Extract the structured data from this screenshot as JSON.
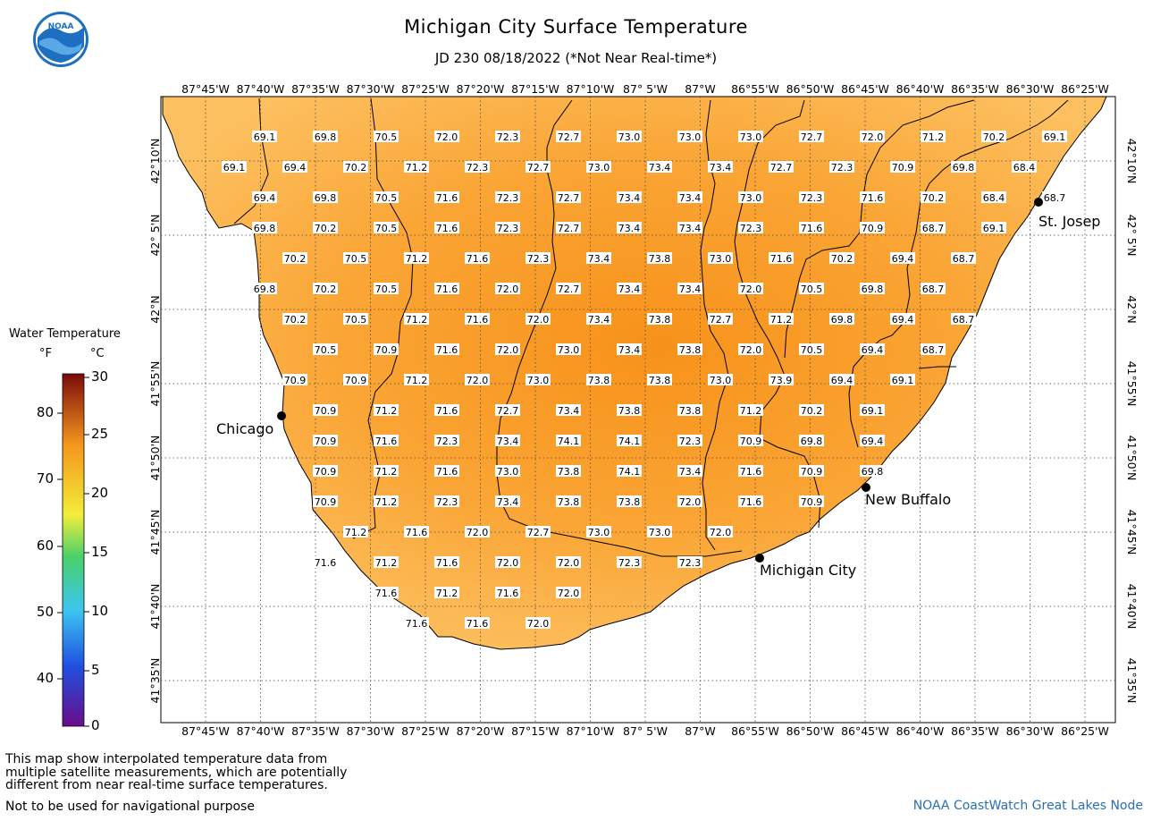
{
  "header": {
    "title": "Michigan City Surface Temperature",
    "subtitle": "JD 230 08/18/2022 (*Not Near Real-time*)",
    "logo_text": "NOAA"
  },
  "legend": {
    "title": "Water Temperature",
    "unit_f": "°F",
    "unit_c": "°C",
    "fahrenheit_ticks": [
      "80",
      "70",
      "60",
      "50",
      "40"
    ],
    "celsius_ticks": [
      "30",
      "25",
      "20",
      "15",
      "10",
      "5",
      "0"
    ]
  },
  "map": {
    "lon_labels": [
      "87°45'W",
      "87°40'W",
      "87°35'W",
      "87°30'W",
      "87°25'W",
      "87°20'W",
      "87°15'W",
      "87°10'W",
      "87° 5'W",
      "87°W",
      "86°55'W",
      "86°50'W",
      "86°45'W",
      "86°40'W",
      "86°35'W",
      "86°30'W",
      "86°25'W"
    ],
    "lat_labels": [
      "42°10'N",
      "42° 5'N",
      "42°N",
      "41°55'N",
      "41°50'N",
      "41°45'N",
      "41°40'N",
      "41°35'N"
    ],
    "colors": {
      "lake_fill": "#fbaa3a",
      "warm_core": "#f7931e",
      "cool_edge": "#fdc35a",
      "grid": "#555555"
    },
    "cities": [
      {
        "name": "Chicago"
      },
      {
        "name": "St. Josep"
      },
      {
        "name": "New Buffalo"
      },
      {
        "name": "Michigan City"
      }
    ],
    "rows": [
      [
        "69.1",
        "69.8",
        "70.5",
        "72.0",
        "72.3",
        "72.7",
        "73.0",
        "73.0",
        "73.0",
        "72.7",
        "72.0",
        "71.2",
        "70.2",
        "69.1"
      ],
      [
        "69.1",
        "69.4",
        "70.2",
        "71.2",
        "72.3",
        "72.7",
        "73.0",
        "73.4",
        "73.4",
        "72.7",
        "72.3",
        "70.9",
        "69.8",
        "68.4"
      ],
      [
        "69.4",
        "69.8",
        "70.5",
        "71.6",
        "72.3",
        "72.7",
        "73.4",
        "73.4",
        "73.0",
        "72.3",
        "71.6",
        "70.2",
        "68.4",
        "68.7"
      ],
      [
        "69.8",
        "70.2",
        "70.5",
        "71.6",
        "72.3",
        "72.7",
        "73.4",
        "73.4",
        "72.3",
        "71.6",
        "70.9",
        "68.7",
        "69.1"
      ],
      [
        "70.2",
        "70.5",
        "71.2",
        "71.6",
        "72.3",
        "73.4",
        "73.8",
        "73.0",
        "71.6",
        "70.2",
        "69.4",
        "68.7"
      ],
      [
        "69.8",
        "70.2",
        "70.5",
        "71.6",
        "72.0",
        "72.7",
        "73.4",
        "73.4",
        "72.0",
        "70.5",
        "69.8",
        "68.7"
      ],
      [
        "70.2",
        "70.5",
        "71.2",
        "71.6",
        "72.0",
        "73.4",
        "73.8",
        "72.7",
        "71.2",
        "69.8",
        "69.4",
        "68.7"
      ],
      [
        "70.5",
        "70.9",
        "71.6",
        "72.0",
        "73.0",
        "73.4",
        "73.8",
        "72.0",
        "70.5",
        "69.4",
        "68.7"
      ],
      [
        "70.9",
        "70.9",
        "71.2",
        "72.0",
        "73.0",
        "73.8",
        "73.8",
        "73.0",
        "73.9",
        "69.4",
        "69.1"
      ],
      [
        "70.9",
        "71.2",
        "71.6",
        "72.7",
        "73.4",
        "73.8",
        "73.8",
        "71.2",
        "70.2",
        "69.1"
      ],
      [
        "70.9",
        "71.6",
        "72.3",
        "73.4",
        "74.1",
        "74.1",
        "72.3",
        "70.9",
        "69.8",
        "69.4"
      ],
      [
        "70.9",
        "71.2",
        "71.6",
        "73.0",
        "73.8",
        "74.1",
        "73.4",
        "71.6",
        "70.9",
        "69.8"
      ],
      [
        "70.9",
        "71.2",
        "72.3",
        "73.4",
        "73.8",
        "73.8",
        "72.0",
        "71.6",
        "70.9"
      ],
      [
        "71.2",
        "71.6",
        "72.0",
        "72.7",
        "73.0",
        "73.0",
        "72.0"
      ],
      [
        "71.6",
        "71.2",
        "71.6",
        "72.0",
        "72.0",
        "72.3",
        "72.3"
      ],
      [
        "71.6",
        "71.2",
        "71.6",
        "72.0"
      ],
      [
        "71.6",
        "71.6",
        "72.0"
      ]
    ]
  },
  "footer": {
    "note_line1": "This map show interpolated temperature data from",
    "note_line2": "multiple satellite measurements, which are potentially",
    "note_line3": "different from near real-time surface temperatures.",
    "note_line4": "Not to be used for navigational purpose",
    "credit": "NOAA CoastWatch Great Lakes Node"
  }
}
